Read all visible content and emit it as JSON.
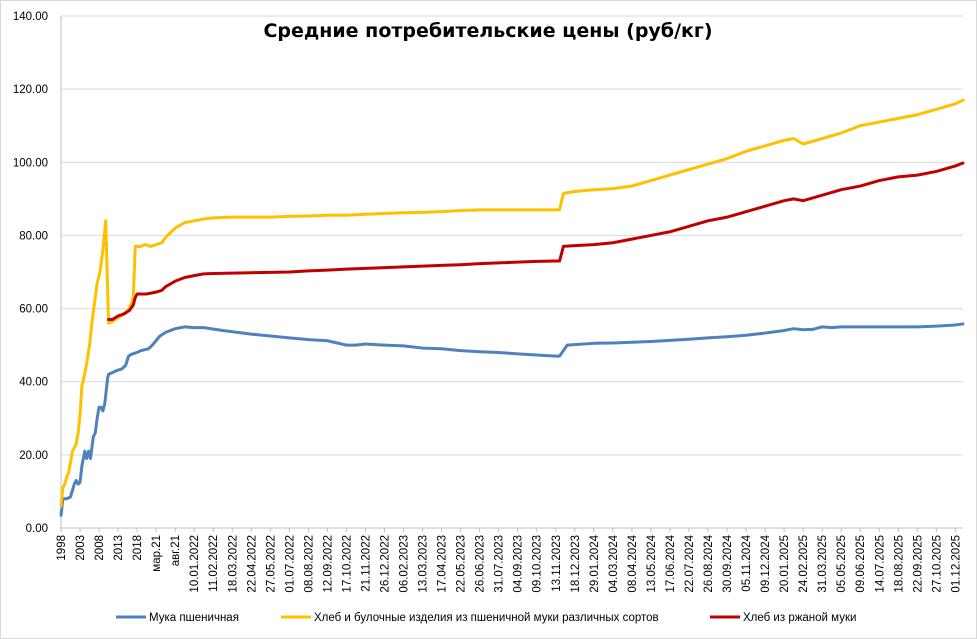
{
  "chart_data": {
    "type": "line",
    "title": "Средние потребительские цены (руб/кг)",
    "xlabel": "",
    "ylabel": "",
    "ylim": [
      0,
      140
    ],
    "yticks": [
      "0.00",
      "20.00",
      "40.00",
      "60.00",
      "80.00",
      "100.00",
      "120.00",
      "140.00"
    ],
    "grid": true,
    "legend_position": "bottom",
    "x_tick_labels": [
      "1998",
      "2003",
      "2008",
      "2013",
      "2018",
      "мар.21",
      "авг.21",
      "10.01.2022",
      "11.02.2022",
      "18.03.2022",
      "22.04.2022",
      "27.05.2022",
      "01.07.2022",
      "08.08.2022",
      "12.09.2022",
      "17.10.2022",
      "21.11.2022",
      "26.12.2022",
      "06.02.2023",
      "13.03.2023",
      "17.04.2023",
      "22.05.2023",
      "26.06.2023",
      "31.07.2023",
      "04.09.2023",
      "09.10.2023",
      "13.11.2023",
      "18.12.2023",
      "29.01.2024",
      "04.03.2024",
      "08.04.2024",
      "13.05.2024",
      "17.06.2024",
      "22.07.2024",
      "26.08.2024",
      "30.09.2024",
      "05.11.2024",
      "09.12.2024",
      "20.01.2025",
      "24.02.2025",
      "31.03.2025",
      "05.05.2025",
      "09.06.2025",
      "14.07.2025",
      "18.08.2025",
      "22.09.2025",
      "27.10.2025",
      "01.12.2025"
    ],
    "series": [
      {
        "name": "Мука пшеничная",
        "color": "#4f81bd",
        "points": [
          [
            0,
            3.5
          ],
          [
            0.1,
            8
          ],
          [
            0.3,
            8
          ],
          [
            0.5,
            8.5
          ],
          [
            0.7,
            12
          ],
          [
            0.8,
            13
          ],
          [
            0.9,
            12
          ],
          [
            1.0,
            12.5
          ],
          [
            1.1,
            17
          ],
          [
            1.25,
            21
          ],
          [
            1.35,
            19
          ],
          [
            1.45,
            21
          ],
          [
            1.55,
            19
          ],
          [
            1.7,
            25
          ],
          [
            1.8,
            26
          ],
          [
            1.9,
            30
          ],
          [
            2.0,
            33
          ],
          [
            2.1,
            33
          ],
          [
            2.2,
            32
          ],
          [
            2.3,
            34
          ],
          [
            2.45,
            41
          ],
          [
            2.5,
            42
          ],
          [
            2.9,
            43
          ],
          [
            3.2,
            43.5
          ],
          [
            3.4,
            44.5
          ],
          [
            3.55,
            47
          ],
          [
            3.7,
            47.5
          ],
          [
            4.0,
            48
          ],
          [
            4.2,
            48.5
          ],
          [
            4.6,
            49
          ],
          [
            4.8,
            50
          ],
          [
            5.2,
            52.5
          ],
          [
            5.5,
            53.5
          ],
          [
            6.0,
            54.5
          ],
          [
            6.5,
            55
          ],
          [
            7.0,
            54.8
          ],
          [
            7.5,
            54.8
          ],
          [
            8.5,
            54
          ],
          [
            10,
            53
          ],
          [
            11,
            52.5
          ],
          [
            12,
            52
          ],
          [
            13,
            51.5
          ],
          [
            14,
            51.2
          ],
          [
            15,
            50
          ],
          [
            15.5,
            50
          ],
          [
            16,
            50.3
          ],
          [
            17,
            50
          ],
          [
            18,
            49.8
          ],
          [
            19,
            49.2
          ],
          [
            20,
            49
          ],
          [
            21,
            48.5
          ],
          [
            22,
            48.2
          ],
          [
            23,
            48
          ],
          [
            24,
            47.6
          ],
          [
            25,
            47.3
          ],
          [
            26,
            47
          ],
          [
            26.2,
            47
          ],
          [
            26.6,
            50
          ],
          [
            28,
            50.5
          ],
          [
            29,
            50.6
          ],
          [
            30,
            50.8
          ],
          [
            31,
            51
          ],
          [
            32,
            51.3
          ],
          [
            33,
            51.6
          ],
          [
            34,
            52
          ],
          [
            35,
            52.3
          ],
          [
            36,
            52.7
          ],
          [
            37,
            53.3
          ],
          [
            38,
            54
          ],
          [
            38.5,
            54.5
          ],
          [
            39,
            54.2
          ],
          [
            39.5,
            54.3
          ],
          [
            40,
            55
          ],
          [
            40.5,
            54.8
          ],
          [
            41,
            55
          ],
          [
            42,
            55
          ],
          [
            43,
            55
          ],
          [
            44,
            55
          ],
          [
            45,
            55
          ],
          [
            46,
            55.2
          ],
          [
            47,
            55.5
          ],
          [
            47.4,
            55.8
          ]
        ]
      },
      {
        "name": "Хлеб и булочные изделия из пшеничной муки различных сортов",
        "color": "#ffc000",
        "points": [
          [
            0,
            6
          ],
          [
            0.1,
            11
          ],
          [
            0.2,
            12
          ],
          [
            0.3,
            14
          ],
          [
            0.4,
            15
          ],
          [
            0.6,
            21
          ],
          [
            0.8,
            23
          ],
          [
            0.9,
            26
          ],
          [
            1.0,
            31
          ],
          [
            1.1,
            39
          ],
          [
            1.2,
            41
          ],
          [
            1.35,
            45
          ],
          [
            1.5,
            50
          ],
          [
            1.6,
            55
          ],
          [
            1.8,
            63
          ],
          [
            1.9,
            67
          ],
          [
            2.05,
            70
          ],
          [
            2.2,
            76
          ],
          [
            2.35,
            84
          ],
          [
            2.5,
            56
          ],
          [
            2.7,
            56.5
          ],
          [
            3.0,
            57.5
          ],
          [
            3.4,
            59
          ],
          [
            3.6,
            60
          ],
          [
            3.8,
            63
          ],
          [
            3.9,
            77
          ],
          [
            4.2,
            77
          ],
          [
            4.4,
            77.5
          ],
          [
            4.7,
            77
          ],
          [
            5.0,
            77.5
          ],
          [
            5.3,
            78
          ],
          [
            5.5,
            79.5
          ],
          [
            6.0,
            82
          ],
          [
            6.5,
            83.5
          ],
          [
            7,
            84
          ],
          [
            7.5,
            84.5
          ],
          [
            8,
            84.8
          ],
          [
            9,
            85
          ],
          [
            10,
            85
          ],
          [
            11,
            85
          ],
          [
            12,
            85.2
          ],
          [
            13,
            85.3
          ],
          [
            14,
            85.5
          ],
          [
            15,
            85.5
          ],
          [
            16,
            85.8
          ],
          [
            17,
            86
          ],
          [
            18,
            86.2
          ],
          [
            19,
            86.3
          ],
          [
            20,
            86.5
          ],
          [
            21,
            86.8
          ],
          [
            22,
            87
          ],
          [
            23,
            87
          ],
          [
            24,
            87
          ],
          [
            25,
            87
          ],
          [
            26,
            87
          ],
          [
            26.2,
            87
          ],
          [
            26.4,
            91.5
          ],
          [
            27,
            92
          ],
          [
            28,
            92.5
          ],
          [
            29,
            92.8
          ],
          [
            30,
            93.5
          ],
          [
            31,
            95
          ],
          [
            32,
            96.5
          ],
          [
            33,
            98
          ],
          [
            34,
            99.5
          ],
          [
            35,
            101
          ],
          [
            36,
            103
          ],
          [
            37,
            104.5
          ],
          [
            38,
            106
          ],
          [
            38.5,
            106.5
          ],
          [
            39,
            105
          ],
          [
            40,
            106.5
          ],
          [
            41,
            108
          ],
          [
            42,
            110
          ],
          [
            43,
            111
          ],
          [
            44,
            112
          ],
          [
            45,
            113
          ],
          [
            46,
            114.5
          ],
          [
            47,
            116
          ],
          [
            47.4,
            117
          ]
        ]
      },
      {
        "name": "Хлеб из ржаной муки",
        "color": "#c00000",
        "points": [
          [
            2.5,
            57
          ],
          [
            2.7,
            57
          ],
          [
            3.0,
            58
          ],
          [
            3.3,
            58.5
          ],
          [
            3.6,
            59.5
          ],
          [
            3.8,
            61
          ],
          [
            3.9,
            63
          ],
          [
            4.0,
            64
          ],
          [
            4.5,
            64
          ],
          [
            5.0,
            64.5
          ],
          [
            5.3,
            65
          ],
          [
            5.5,
            66
          ],
          [
            6.0,
            67.5
          ],
          [
            6.5,
            68.5
          ],
          [
            7,
            69
          ],
          [
            7.5,
            69.5
          ],
          [
            8,
            69.6
          ],
          [
            9,
            69.7
          ],
          [
            10,
            69.8
          ],
          [
            11,
            69.9
          ],
          [
            12,
            70
          ],
          [
            13,
            70.3
          ],
          [
            14,
            70.5
          ],
          [
            15,
            70.8
          ],
          [
            16,
            71
          ],
          [
            17,
            71.2
          ],
          [
            18,
            71.4
          ],
          [
            19,
            71.6
          ],
          [
            20,
            71.8
          ],
          [
            21,
            72
          ],
          [
            22,
            72.3
          ],
          [
            23,
            72.5
          ],
          [
            24,
            72.7
          ],
          [
            25,
            72.9
          ],
          [
            26,
            73
          ],
          [
            26.2,
            73
          ],
          [
            26.4,
            77
          ],
          [
            27,
            77.2
          ],
          [
            28,
            77.5
          ],
          [
            29,
            78
          ],
          [
            30,
            79
          ],
          [
            31,
            80
          ],
          [
            32,
            81
          ],
          [
            33,
            82.5
          ],
          [
            34,
            84
          ],
          [
            35,
            85
          ],
          [
            36,
            86.5
          ],
          [
            37,
            88
          ],
          [
            38,
            89.5
          ],
          [
            38.5,
            90
          ],
          [
            39,
            89.5
          ],
          [
            40,
            91
          ],
          [
            41,
            92.5
          ],
          [
            42,
            93.5
          ],
          [
            43,
            95
          ],
          [
            44,
            96
          ],
          [
            45,
            96.5
          ],
          [
            46,
            97.5
          ],
          [
            47,
            99
          ],
          [
            47.4,
            99.8
          ]
        ]
      }
    ]
  }
}
